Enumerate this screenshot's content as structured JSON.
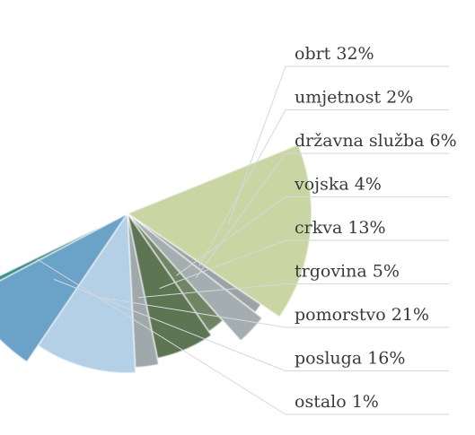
{
  "chart_data": {
    "type": "pie",
    "title": "",
    "slices": [
      {
        "label": "obrt 32%",
        "value": 32,
        "color": "#c9d6a3"
      },
      {
        "label": "umjetnost 2%",
        "value": 2,
        "color": "#9aa4a6"
      },
      {
        "label": "državna služba 6%",
        "value": 6,
        "color": "#a4aeb0"
      },
      {
        "label": "vojska 4%",
        "value": 4,
        "color": "#6f8563"
      },
      {
        "label": "crkva 13%",
        "value": 13,
        "color": "#5d7553"
      },
      {
        "label": "trgovina 5%",
        "value": 5,
        "color": "#9fa9ab"
      },
      {
        "label": "pomorstvo 21%",
        "value": 21,
        "color": "#b3d0e6"
      },
      {
        "label": "posluga 16%",
        "value": 16,
        "color": "#6aa2c8"
      },
      {
        "label": "ostalo 1%",
        "value": 1,
        "color": "#2b8f8a"
      }
    ],
    "legend_placement": "right",
    "leader_lines": true
  }
}
